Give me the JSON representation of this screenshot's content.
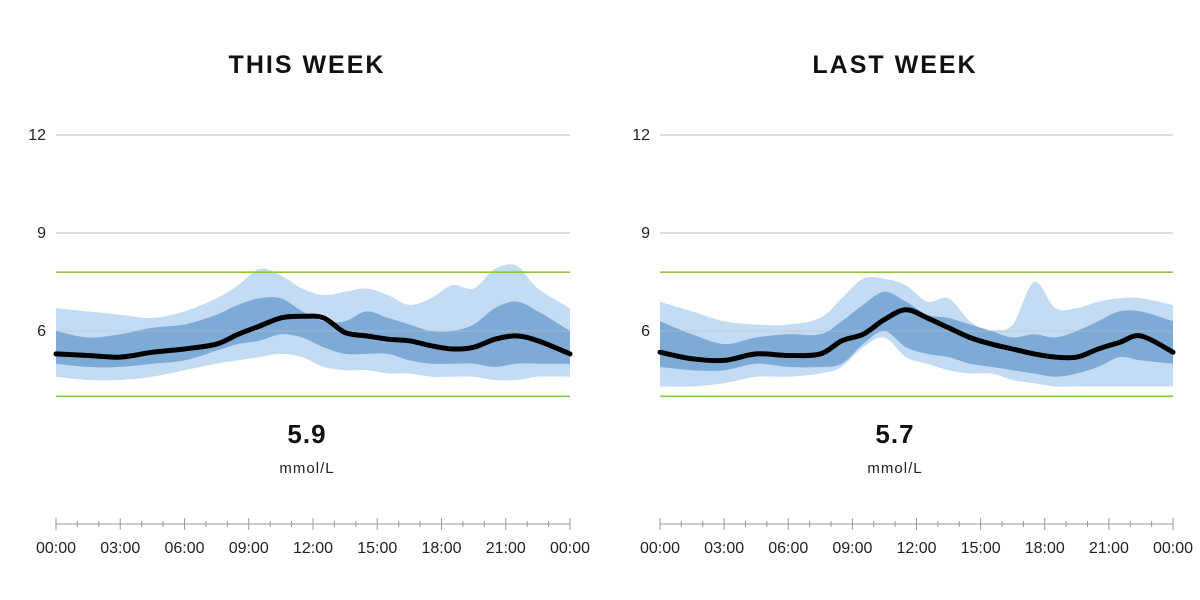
{
  "chart_data": [
    {
      "type": "area",
      "title": "THIS WEEK",
      "average": "5.9",
      "unit": "mmol/L",
      "ylim": [
        2.8,
        13.1
      ],
      "yticks": [
        "6",
        "9",
        "12"
      ],
      "target_range": [
        4.0,
        7.8
      ],
      "xlim": [
        0,
        24
      ],
      "xtick_labels": [
        "00:00",
        "03:00",
        "06:00",
        "09:00",
        "12:00",
        "15:00",
        "18:00",
        "21:00",
        "00:00"
      ],
      "grid": true,
      "x": [
        0,
        1.5,
        3,
        4.5,
        6,
        7.5,
        8.5,
        9.5,
        10.5,
        11.5,
        12.5,
        13.5,
        14.5,
        15.5,
        16.5,
        17.5,
        18.5,
        19.5,
        20.5,
        21.5,
        22.5,
        24
      ],
      "series": [
        {
          "role": "outer-band",
          "upper": [
            6.7,
            6.6,
            6.5,
            6.4,
            6.6,
            7.0,
            7.4,
            7.9,
            7.7,
            7.3,
            7.1,
            7.2,
            7.3,
            7.1,
            6.8,
            7.0,
            7.4,
            7.3,
            7.9,
            8.0,
            7.3,
            6.7
          ],
          "lower": [
            4.6,
            4.5,
            4.5,
            4.6,
            4.8,
            5.0,
            5.1,
            5.2,
            5.3,
            5.2,
            4.9,
            4.8,
            4.8,
            4.7,
            4.7,
            4.6,
            4.6,
            4.6,
            4.5,
            4.5,
            4.6,
            4.6
          ]
        },
        {
          "role": "inner-band",
          "upper": [
            6.0,
            5.8,
            5.9,
            6.1,
            6.2,
            6.5,
            6.8,
            7.0,
            7.0,
            6.6,
            6.3,
            6.3,
            6.6,
            6.4,
            6.2,
            6.0,
            6.0,
            6.2,
            6.7,
            6.9,
            6.6,
            6.0
          ],
          "lower": [
            5.0,
            4.9,
            4.9,
            5.0,
            5.1,
            5.4,
            5.6,
            5.7,
            5.9,
            5.8,
            5.5,
            5.3,
            5.3,
            5.3,
            5.1,
            5.0,
            5.0,
            5.0,
            4.9,
            5.0,
            5.0,
            5.0
          ]
        },
        {
          "role": "median",
          "values": [
            5.3,
            5.25,
            5.2,
            5.35,
            5.45,
            5.6,
            5.9,
            6.15,
            6.4,
            6.45,
            6.4,
            5.95,
            5.85,
            5.75,
            5.7,
            5.55,
            5.45,
            5.5,
            5.75,
            5.85,
            5.7,
            5.3
          ]
        }
      ]
    },
    {
      "type": "area",
      "title": "LAST WEEK",
      "average": "5.7",
      "unit": "mmol/L",
      "ylim": [
        2.8,
        13.1
      ],
      "yticks": [
        "6",
        "9",
        "12"
      ],
      "target_range": [
        4.0,
        7.8
      ],
      "xlim": [
        0,
        24
      ],
      "xtick_labels": [
        "00:00",
        "03:00",
        "06:00",
        "09:00",
        "12:00",
        "15:00",
        "18:00",
        "21:00",
        "00:00"
      ],
      "grid": true,
      "x": [
        0,
        1.5,
        3,
        4.5,
        6,
        7.5,
        8.5,
        9.5,
        10.5,
        11.5,
        12.5,
        13.5,
        14.5,
        15.5,
        16.5,
        17.5,
        18.5,
        19.5,
        20.5,
        21.5,
        22.5,
        24
      ],
      "series": [
        {
          "role": "outer-band",
          "upper": [
            6.9,
            6.6,
            6.3,
            6.2,
            6.2,
            6.4,
            7.0,
            7.6,
            7.6,
            7.4,
            6.9,
            7.0,
            6.3,
            6.0,
            6.2,
            7.5,
            6.7,
            6.7,
            6.9,
            7.0,
            7.0,
            6.8
          ],
          "lower": [
            4.3,
            4.3,
            4.4,
            4.6,
            4.6,
            4.7,
            4.9,
            5.5,
            5.8,
            5.2,
            5.0,
            4.8,
            4.7,
            4.7,
            4.5,
            4.4,
            4.3,
            4.3,
            4.3,
            4.3,
            4.3,
            4.3
          ]
        },
        {
          "role": "inner-band",
          "upper": [
            6.3,
            5.9,
            5.6,
            5.8,
            5.9,
            5.9,
            6.3,
            6.8,
            7.2,
            6.9,
            6.5,
            6.4,
            6.2,
            6.0,
            5.8,
            5.9,
            5.8,
            6.0,
            6.3,
            6.6,
            6.6,
            6.3
          ],
          "lower": [
            4.9,
            4.8,
            4.8,
            5.0,
            4.9,
            4.9,
            5.0,
            5.6,
            6.0,
            5.5,
            5.3,
            5.2,
            5.0,
            4.9,
            4.8,
            4.7,
            4.6,
            4.7,
            4.9,
            5.2,
            5.1,
            5.0
          ]
        },
        {
          "role": "median",
          "values": [
            5.35,
            5.15,
            5.1,
            5.3,
            5.25,
            5.3,
            5.7,
            5.9,
            6.35,
            6.65,
            6.4,
            6.1,
            5.8,
            5.6,
            5.45,
            5.3,
            5.2,
            5.2,
            5.45,
            5.65,
            5.85,
            5.35
          ]
        }
      ]
    }
  ],
  "colors": {
    "outer_band": "#c3dcf4",
    "inner_band": "#7eaad6",
    "median": "#000000",
    "target": "#8dc63f",
    "grid": "#bdbdbd",
    "axis": "#9a9a9a"
  }
}
